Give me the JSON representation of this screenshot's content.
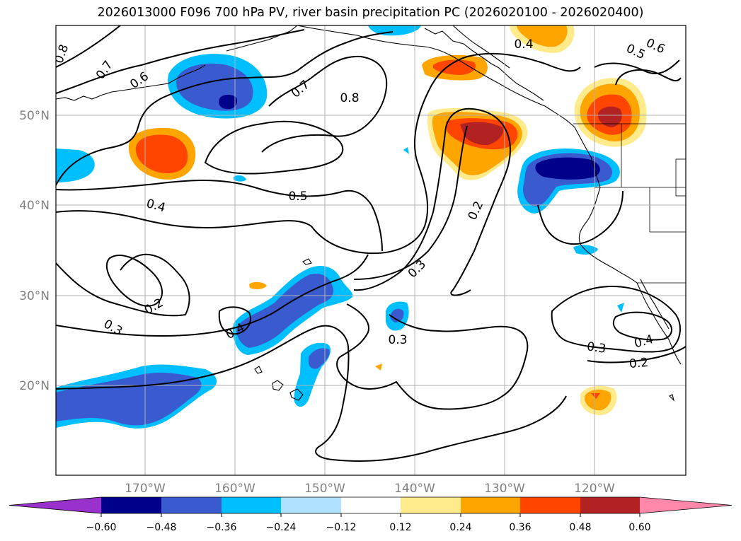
{
  "title": "2026013000 F096 700 hPa PV, river basin precipitation PC (2026020100 - 2026020400)",
  "map": {
    "lat_labels": [
      "50°N",
      "40°N",
      "30°N",
      "20°N"
    ],
    "lon_labels": [
      "170°W",
      "160°W",
      "150°W",
      "140°W",
      "130°W",
      "120°W"
    ],
    "contour_labels": [
      "0.8",
      "0.7",
      "0.6",
      "0.6",
      "0.5",
      "0.4",
      "0.7",
      "0.8",
      "0.5",
      "0.4",
      "0.2",
      "0.3",
      "0.2",
      "0.3",
      "0.4",
      "0.3",
      "0.3",
      "0.4",
      "0.2"
    ],
    "colors": {
      "land_outline": "#000000",
      "grid": "#b0b0b0"
    }
  },
  "colorbar": {
    "ticks": [
      "−0.60",
      "−0.48",
      "−0.36",
      "−0.24",
      "−0.12",
      "0.12",
      "0.24",
      "0.36",
      "0.48",
      "0.60"
    ],
    "colors": [
      "#9932cc",
      "#00008b",
      "#3a5bd0",
      "#00bfff",
      "#b0e2ff",
      "#ffffff",
      "#ffea8c",
      "#ffa500",
      "#ff4500",
      "#b22222",
      "#ff88aa"
    ]
  }
}
